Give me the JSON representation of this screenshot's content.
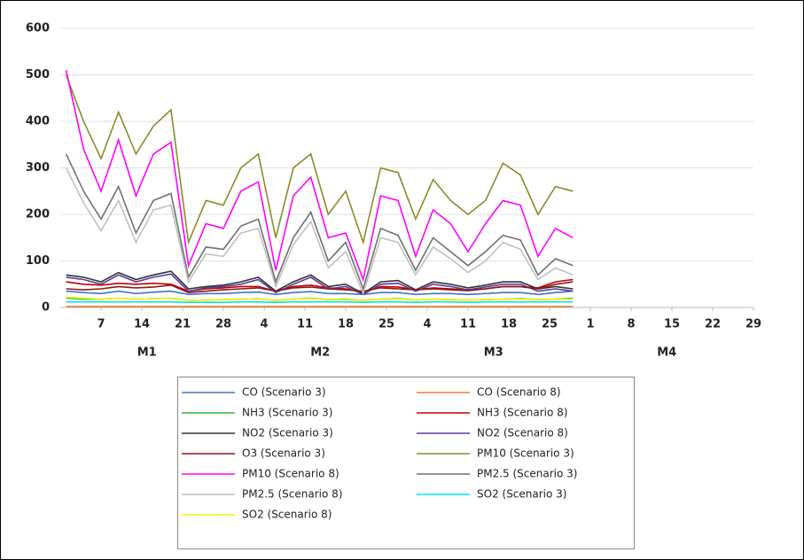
{
  "chart_data": {
    "type": "line",
    "x": [
      1,
      4,
      7,
      10,
      13,
      16,
      19,
      22,
      25,
      28,
      31,
      34,
      37,
      40,
      43,
      46,
      49,
      52,
      55,
      58,
      61,
      64,
      67,
      70,
      73,
      76,
      79,
      82,
      85,
      88
    ],
    "xlim": [
      0,
      119
    ],
    "xticks": [
      7,
      14,
      21,
      28,
      {
        "value": 35,
        "label": "4"
      },
      {
        "value": 42,
        "label": "11"
      },
      {
        "value": 49,
        "label": "18"
      },
      {
        "value": 56,
        "label": "25"
      },
      {
        "value": 63,
        "label": "4"
      },
      {
        "value": 70,
        "label": "11"
      },
      {
        "value": 77,
        "label": "18"
      },
      {
        "value": 84,
        "label": "25"
      },
      {
        "value": 91,
        "label": "1"
      },
      {
        "value": 98,
        "label": "8"
      },
      {
        "value": 105,
        "label": "15"
      },
      {
        "value": 112,
        "label": "22"
      },
      {
        "value": 119,
        "label": "29"
      }
    ],
    "x_groups": [
      "M1",
      "M2",
      "M3",
      "M4"
    ],
    "ylim": [
      0,
      600
    ],
    "yticks": [
      0,
      100,
      200,
      300,
      400,
      500,
      600
    ],
    "grid": true,
    "series": [
      {
        "name": "CO (Scenario 3)",
        "color": "#4472c4",
        "values": [
          35,
          32,
          30,
          35,
          30,
          33,
          35,
          28,
          30,
          30,
          32,
          33,
          28,
          32,
          34,
          30,
          30,
          28,
          32,
          32,
          28,
          30,
          30,
          28,
          30,
          32,
          32,
          28,
          32,
          35
        ]
      },
      {
        "name": "CO (Scenario 8)",
        "color": "#ed7d31",
        "values": [
          2,
          2,
          2,
          2,
          2,
          2,
          2,
          2,
          2,
          2,
          2,
          2,
          2,
          2,
          2,
          2,
          2,
          2,
          2,
          2,
          2,
          2,
          2,
          2,
          2,
          2,
          2,
          2,
          2,
          2
        ]
      },
      {
        "name": "NH3 (Scenario 3)",
        "color": "#2eb82e",
        "values": [
          20,
          18,
          18,
          20,
          18,
          19,
          20,
          15,
          16,
          17,
          18,
          19,
          15,
          18,
          20,
          17,
          18,
          15,
          18,
          19,
          16,
          18,
          17,
          16,
          17,
          18,
          19,
          17,
          18,
          20
        ]
      },
      {
        "name": "NH3 (Scenario 8)",
        "color": "#c00000",
        "values": [
          55,
          50,
          48,
          52,
          50,
          52,
          50,
          35,
          40,
          42,
          45,
          45,
          35,
          45,
          48,
          42,
          40,
          32,
          45,
          44,
          38,
          42,
          40,
          38,
          40,
          45,
          45,
          42,
          55,
          60
        ]
      },
      {
        "name": "NO2 (Scenario 3)",
        "color": "#333333",
        "values": [
          70,
          65,
          55,
          75,
          60,
          70,
          78,
          40,
          45,
          48,
          55,
          65,
          35,
          55,
          70,
          45,
          50,
          30,
          55,
          58,
          38,
          55,
          50,
          42,
          48,
          55,
          55,
          40,
          45,
          40
        ]
      },
      {
        "name": "NO2 (Scenario 8)",
        "color": "#5b3a9a",
        "values": [
          65,
          60,
          50,
          70,
          55,
          65,
          72,
          35,
          42,
          45,
          50,
          60,
          32,
          50,
          65,
          40,
          45,
          28,
          50,
          52,
          35,
          50,
          45,
          38,
          44,
          50,
          50,
          35,
          40,
          35
        ]
      },
      {
        "name": "O3 (Scenario 3)",
        "color": "#8b1a1a",
        "values": [
          40,
          38,
          40,
          45,
          42,
          44,
          48,
          32,
          35,
          38,
          40,
          42,
          35,
          42,
          44,
          40,
          38,
          35,
          42,
          40,
          38,
          40,
          38,
          36,
          40,
          45,
          45,
          40,
          50,
          55
        ]
      },
      {
        "name": "PM10 (Scenario 3)",
        "color": "#8c8a2a",
        "values": [
          500,
          400,
          320,
          420,
          330,
          390,
          425,
          140,
          230,
          220,
          300,
          330,
          150,
          300,
          330,
          200,
          250,
          140,
          300,
          290,
          190,
          275,
          230,
          200,
          230,
          310,
          285,
          200,
          260,
          250
        ]
      },
      {
        "name": "PM10 (Scenario 8)",
        "color": "#ff00ff",
        "values": [
          510,
          340,
          250,
          360,
          240,
          330,
          355,
          90,
          180,
          170,
          250,
          270,
          80,
          240,
          280,
          150,
          160,
          60,
          240,
          230,
          110,
          210,
          180,
          120,
          180,
          230,
          220,
          110,
          170,
          150
        ]
      },
      {
        "name": "PM2.5 (Scenario 3)",
        "color": "#707070",
        "values": [
          330,
          250,
          190,
          260,
          160,
          230,
          245,
          65,
          130,
          125,
          175,
          190,
          55,
          150,
          205,
          100,
          140,
          40,
          170,
          155,
          80,
          150,
          120,
          90,
          120,
          155,
          145,
          70,
          105,
          90
        ]
      },
      {
        "name": "PM2.5 (Scenario 8)",
        "color": "#c0c0c0",
        "values": [
          300,
          225,
          165,
          230,
          140,
          210,
          220,
          55,
          115,
          110,
          160,
          170,
          45,
          135,
          185,
          85,
          120,
          30,
          150,
          140,
          70,
          130,
          105,
          75,
          100,
          140,
          125,
          60,
          85,
          70
        ]
      },
      {
        "name": "SO2 (Scenario 3)",
        "color": "#00e5e5",
        "values": [
          12,
          12,
          12,
          12,
          12,
          12,
          12,
          11,
          11,
          11,
          12,
          12,
          11,
          12,
          12,
          12,
          12,
          11,
          12,
          12,
          11,
          12,
          12,
          11,
          12,
          12,
          12,
          12,
          12,
          12
        ]
      },
      {
        "name": "SO2 (Scenario 8)",
        "color": "#ffee00",
        "values": [
          22,
          20,
          18,
          20,
          18,
          19,
          20,
          15,
          16,
          17,
          18,
          19,
          15,
          18,
          19,
          17,
          17,
          15,
          18,
          18,
          16,
          18,
          17,
          16,
          17,
          18,
          18,
          17,
          18,
          18
        ]
      }
    ]
  }
}
